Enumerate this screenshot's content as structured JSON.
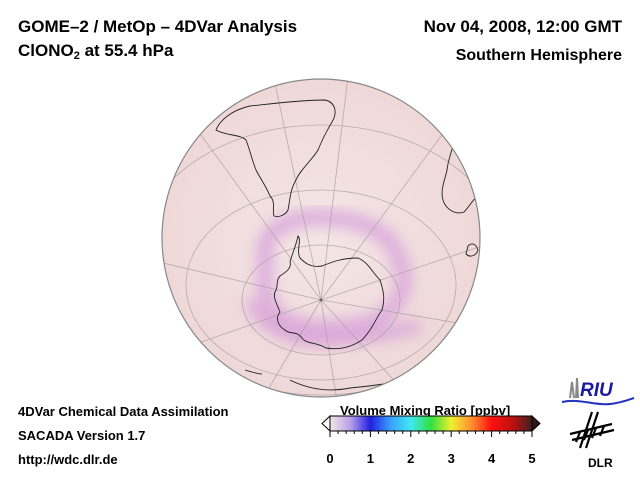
{
  "header": {
    "title": "GOME–2 / MetOp – 4DVar Analysis",
    "species_main": "ClONO",
    "species_sub": "2",
    "species_level": " at 55.4 hPa",
    "datetime": "Nov 04, 2008, 12:00 GMT",
    "region": "Southern Hemisphere"
  },
  "footer": {
    "line1": "4DVar Chemical Data Assimilation",
    "line2": "SACADA Version 1.7",
    "line3": "http://wdc.dlr.de"
  },
  "colorbar": {
    "title": "Volume Mixing Ratio [ppbv]",
    "ticks": [
      "0",
      "1",
      "2",
      "3",
      "4",
      "5"
    ],
    "range": [
      0,
      5
    ],
    "colors": [
      "#f4e6e6",
      "#b9a0e8",
      "#2020e0",
      "#3aa0ff",
      "#40e8f0",
      "#30e040",
      "#f0f030",
      "#ff9030",
      "#ff1010",
      "#c01010",
      "#402020"
    ]
  },
  "map": {
    "projection": "orthographic-south-pole",
    "background_color": "#f3e0e0",
    "ring_color": "#dca0dc"
  },
  "logos": {
    "riu": "RIU",
    "dlr": "DLR"
  }
}
